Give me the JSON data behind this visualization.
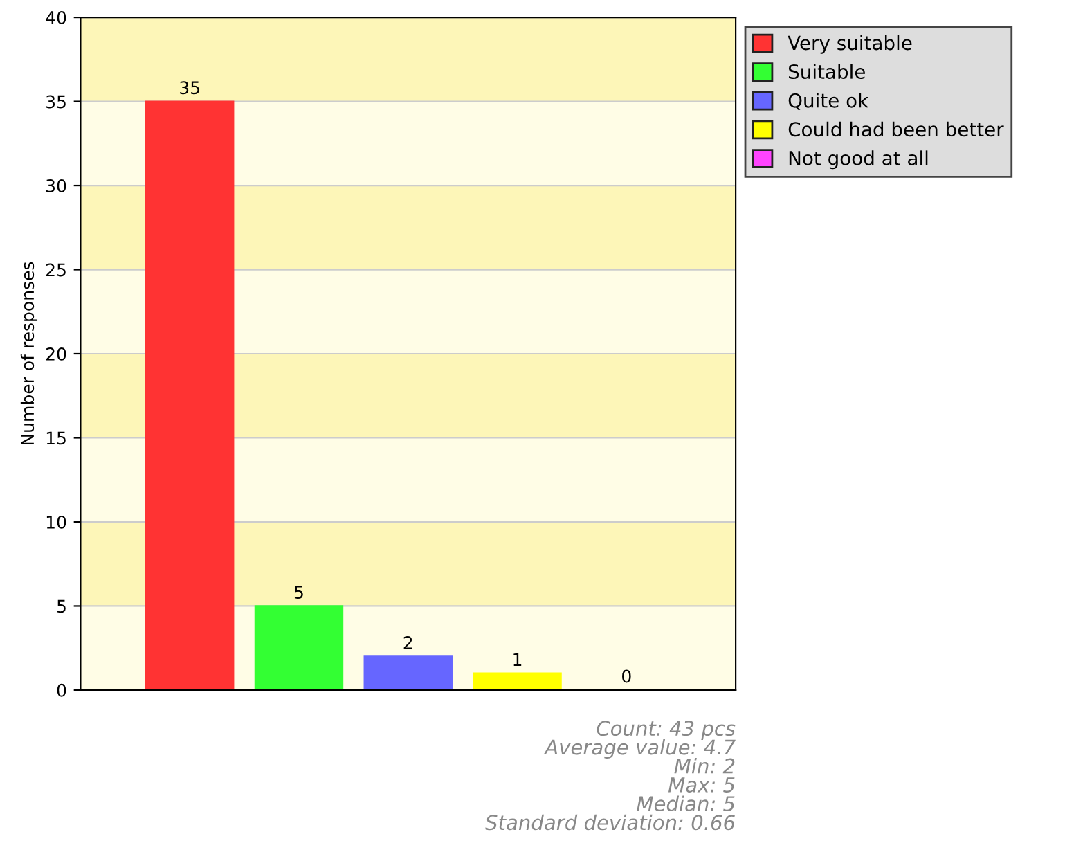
{
  "chart_data": {
    "type": "bar",
    "ylabel": "Number of responses",
    "categories": [
      null,
      null,
      null,
      null,
      null
    ],
    "series": [
      {
        "name": "Very suitable",
        "color": "#ff3333",
        "values": [
          35,
          null,
          null,
          null,
          null
        ]
      },
      {
        "name": "Suitable",
        "color": "#33ff33",
        "values": [
          null,
          5,
          null,
          null,
          null
        ]
      },
      {
        "name": "Quite ok",
        "color": "#6666ff",
        "values": [
          null,
          null,
          2,
          null,
          null
        ]
      },
      {
        "name": "Could had been better",
        "color": "#ffff00",
        "values": [
          null,
          null,
          null,
          1,
          null
        ]
      },
      {
        "name": "Not good at all",
        "color": "#ff44ff",
        "values": [
          null,
          null,
          null,
          null,
          0
        ]
      }
    ],
    "bands": [
      {
        "axis": "y",
        "from": 5,
        "to": 10,
        "color": "#fdf6b8"
      },
      {
        "axis": "y",
        "from": 15,
        "to": 20,
        "color": "#fdf6b8"
      },
      {
        "axis": "y",
        "from": 25,
        "to": 30,
        "color": "#fdf6b8"
      },
      {
        "axis": "y",
        "from": 35,
        "to": 40,
        "color": "#fdf6b8"
      }
    ],
    "ylim": [
      0,
      40
    ],
    "yticks": [
      0,
      5,
      10,
      15,
      20,
      25,
      30,
      35,
      40
    ],
    "grid": "y",
    "legend": "top right",
    "data_labels": true,
    "annotations": [
      "Count: 43 pcs",
      "Average value: 4.7",
      "Min: 2",
      "Max: 5",
      "Median: 5",
      "Standard deviation: 0.66"
    ]
  }
}
